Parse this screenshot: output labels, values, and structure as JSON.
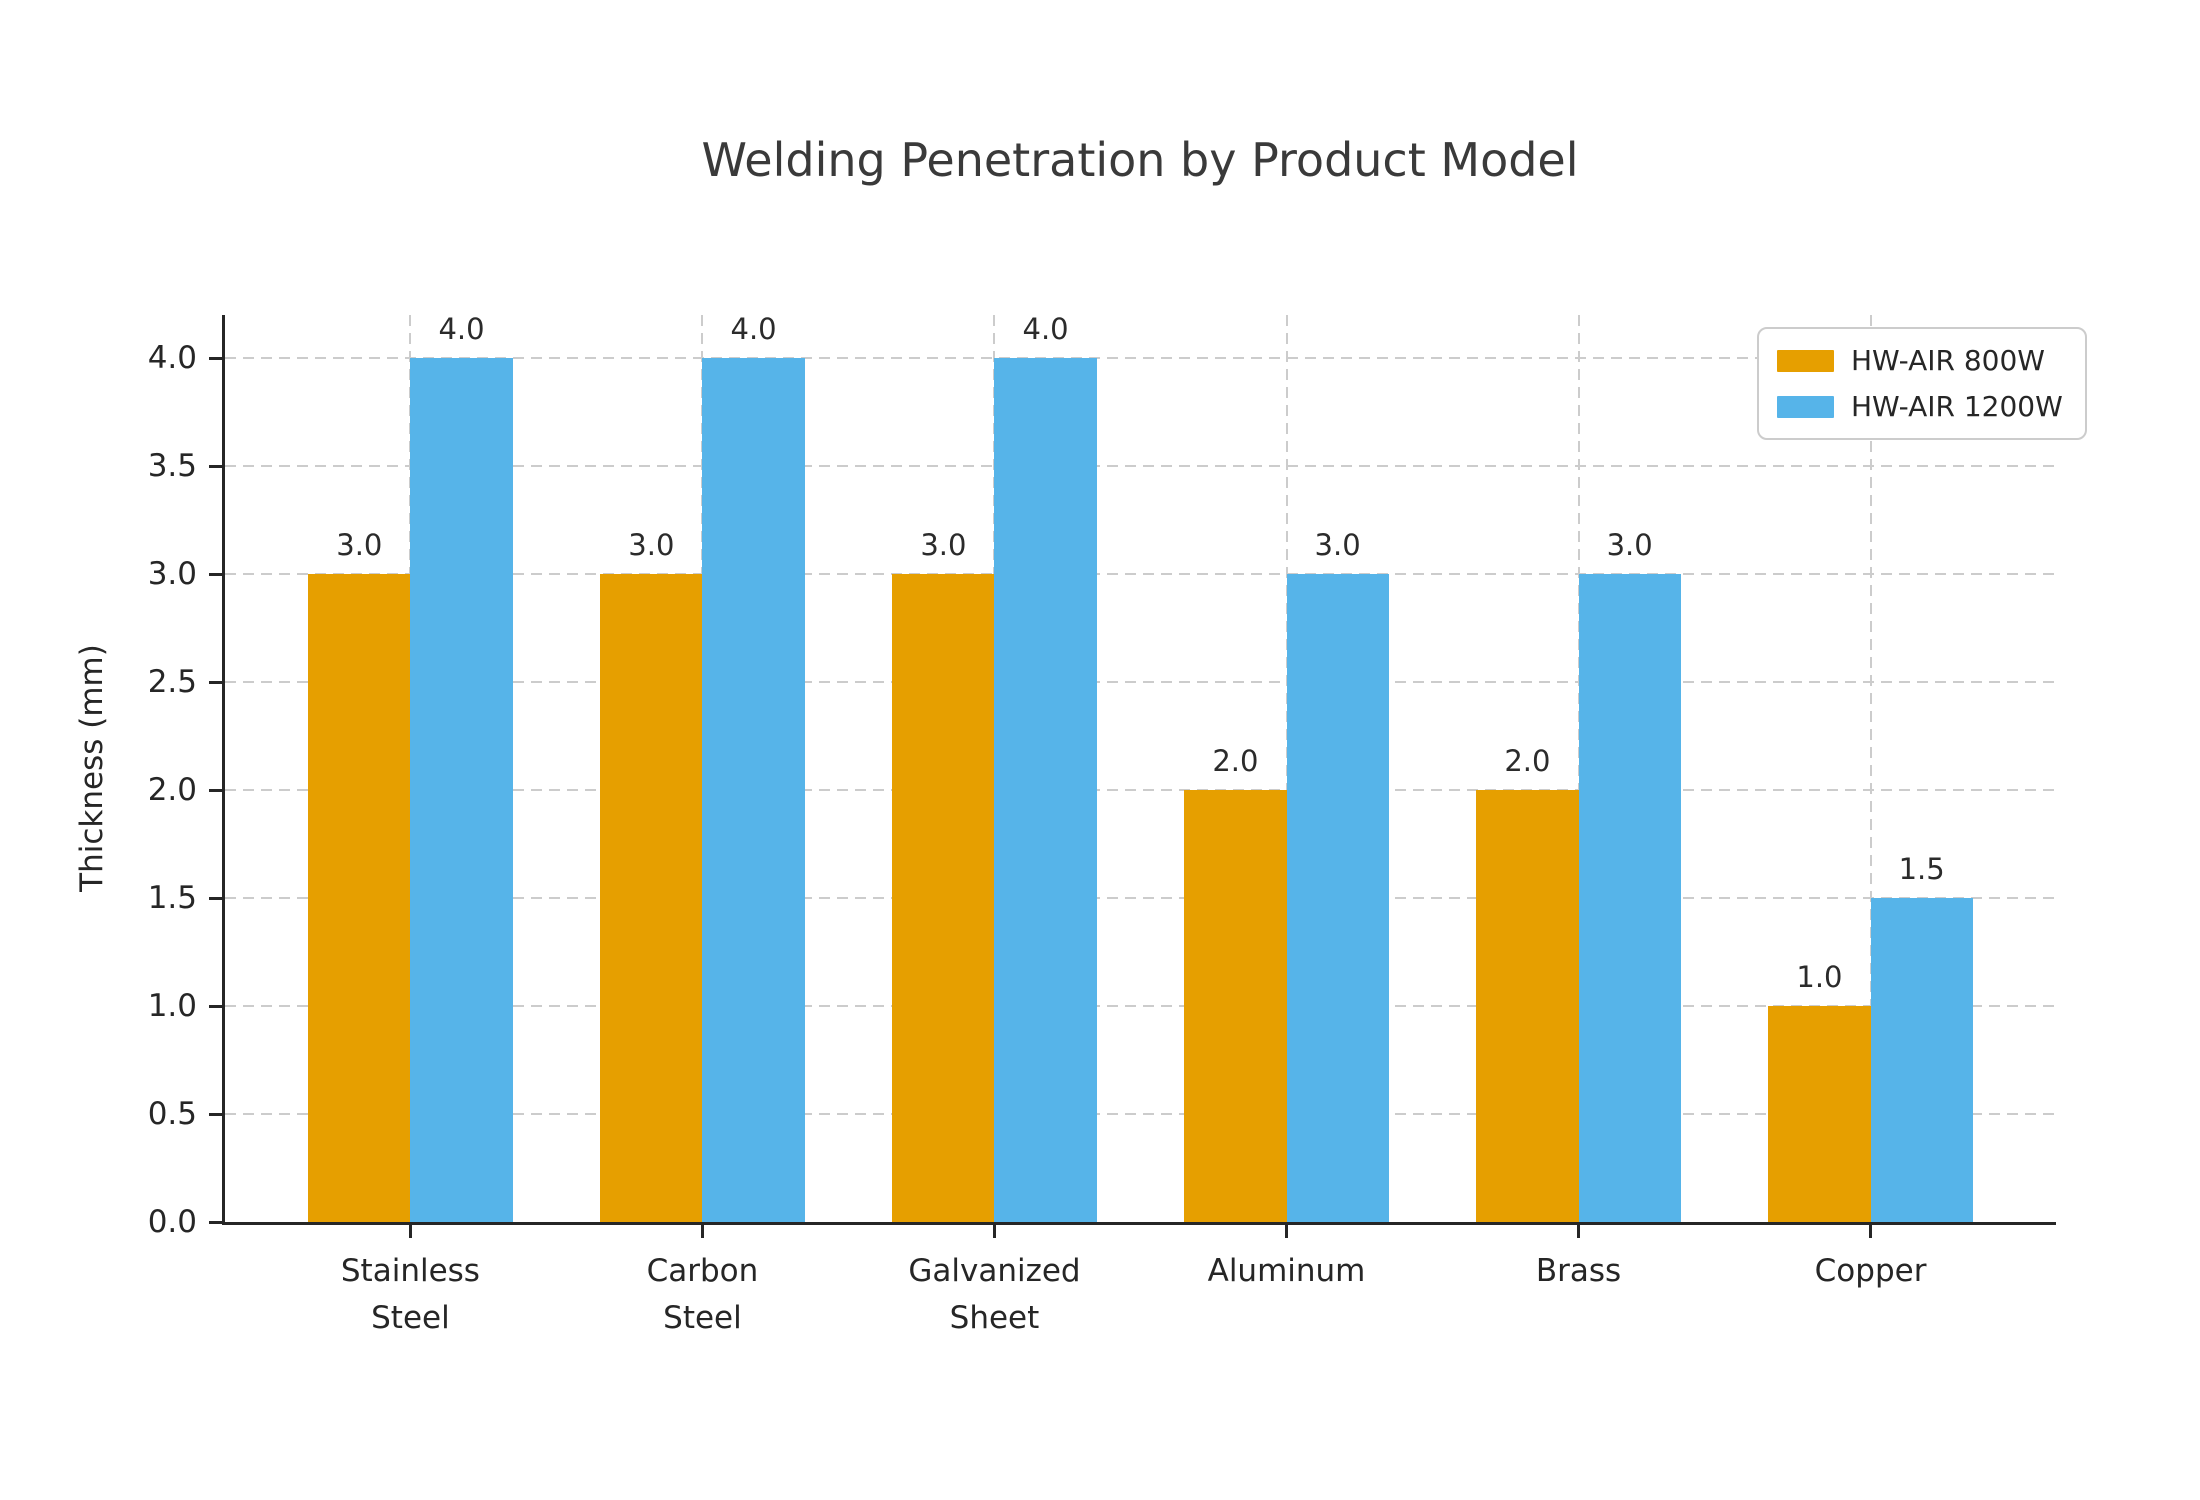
{
  "chart_data": {
    "type": "bar",
    "title": "Welding Penetration by Product Model",
    "ylabel": "Thickness (mm)",
    "categories": [
      "Stainless\nSteel",
      "Carbon\nSteel",
      "Galvanized\nSheet",
      "Aluminum",
      "Brass",
      "Copper"
    ],
    "series": [
      {
        "name": "HW-AIR 800W",
        "color": "#E69F00",
        "values": [
          3.0,
          3.0,
          3.0,
          2.0,
          2.0,
          1.0
        ]
      },
      {
        "name": "HW-AIR 1200W",
        "color": "#56B4E9",
        "values": [
          4.0,
          4.0,
          4.0,
          3.0,
          3.0,
          1.5
        ]
      }
    ],
    "yticks": [
      0.0,
      0.5,
      1.0,
      1.5,
      2.0,
      2.5,
      3.0,
      3.5,
      4.0
    ],
    "ylim": [
      0,
      4.2
    ],
    "bar_width_units": 0.35,
    "grid": true,
    "grid_color": "#cccccc",
    "axis_color": "#262626",
    "legend_position": "upper right",
    "bar_value_labels": true
  }
}
